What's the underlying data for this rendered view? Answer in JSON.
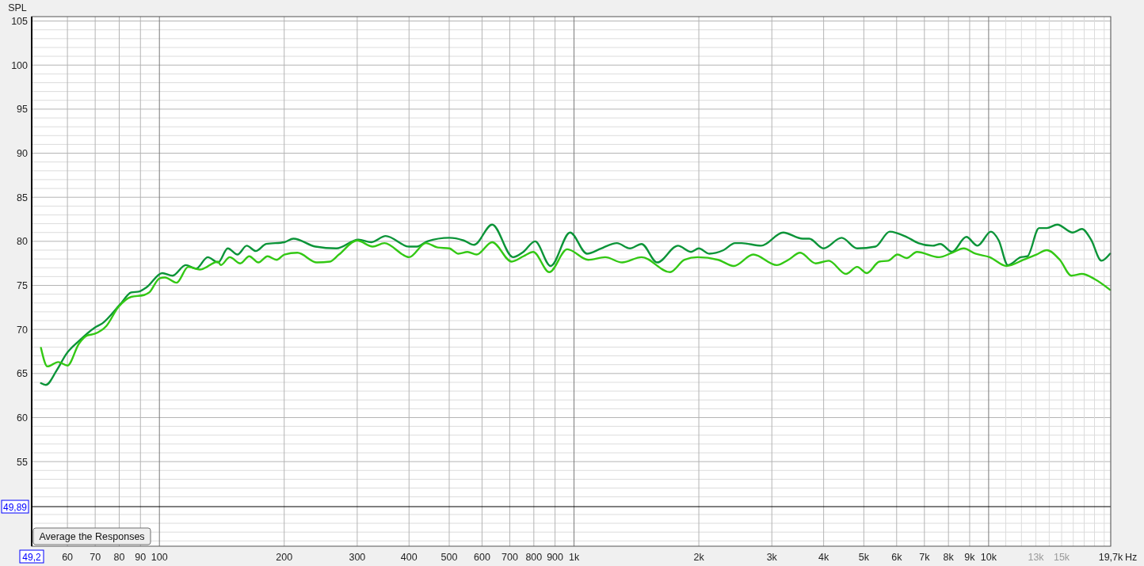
{
  "chart_data": {
    "type": "line",
    "ylabel": "SPL",
    "xlim": [
      49.2,
      19700
    ],
    "ylim": [
      45.4,
      105.5
    ],
    "log": "x",
    "grid": true,
    "line_style": "solid",
    "marker": "none",
    "xticks": [
      {
        "value": 49.2,
        "label": "49,2"
      },
      60,
      70,
      80,
      90,
      100,
      200,
      300,
      400,
      500,
      600,
      700,
      800,
      900,
      {
        "value": 1000,
        "label": "1k"
      },
      {
        "value": 2000,
        "label": "2k"
      },
      {
        "value": 3000,
        "label": "3k"
      },
      {
        "value": 4000,
        "label": "4k"
      },
      {
        "value": 5000,
        "label": "5k"
      },
      {
        "value": 6000,
        "label": "6k"
      },
      {
        "value": 7000,
        "label": "7k"
      },
      {
        "value": 8000,
        "label": "8k"
      },
      {
        "value": 9000,
        "label": "9k"
      },
      {
        "value": 10000,
        "label": "10k"
      },
      {
        "value": 11000,
        "label": null
      },
      {
        "value": 12000,
        "label": null
      },
      {
        "value": 13000,
        "label": "13k"
      },
      {
        "value": 14000,
        "label": null
      },
      {
        "value": 15000,
        "label": "15k"
      },
      {
        "value": 16000,
        "label": null
      },
      {
        "value": 17000,
        "label": null
      },
      {
        "value": 18000,
        "label": null
      },
      {
        "value": 19000,
        "label": null
      },
      {
        "value": 19700,
        "label": "19,7k"
      }
    ],
    "xlabel": "Hz",
    "yticks": [
      {
        "value": 46,
        "label": null
      },
      {
        "value": 47,
        "label": null
      },
      {
        "value": 48,
        "label": null
      },
      {
        "value": 49,
        "label": null
      },
      {
        "value": 51,
        "label": null
      },
      {
        "value": 52,
        "label": null
      },
      {
        "value": 53,
        "label": null
      },
      {
        "value": 54,
        "label": null
      },
      55,
      {
        "value": 56,
        "label": null
      },
      {
        "value": 57,
        "label": null
      },
      {
        "value": 58,
        "label": null
      },
      {
        "value": 59,
        "label": null
      },
      60,
      {
        "value": 61,
        "label": null
      },
      {
        "value": 62,
        "label": null
      },
      {
        "value": 63,
        "label": null
      },
      {
        "value": 64,
        "label": null
      },
      65,
      {
        "value": 66,
        "label": null
      },
      {
        "value": 67,
        "label": null
      },
      {
        "value": 68,
        "label": null
      },
      {
        "value": 69,
        "label": null
      },
      70,
      {
        "value": 71,
        "label": null
      },
      {
        "value": 72,
        "label": null
      },
      {
        "value": 73,
        "label": null
      },
      {
        "value": 74,
        "label": null
      },
      75,
      {
        "value": 76,
        "label": null
      },
      {
        "value": 77,
        "label": null
      },
      {
        "value": 78,
        "label": null
      },
      {
        "value": 79,
        "label": null
      },
      80,
      {
        "value": 81,
        "label": null
      },
      {
        "value": 82,
        "label": null
      },
      {
        "value": 83,
        "label": null
      },
      {
        "value": 84,
        "label": null
      },
      85,
      {
        "value": 86,
        "label": null
      },
      {
        "value": 87,
        "label": null
      },
      {
        "value": 88,
        "label": null
      },
      {
        "value": 89,
        "label": null
      },
      90,
      {
        "value": 91,
        "label": null
      },
      {
        "value": 92,
        "label": null
      },
      {
        "value": 93,
        "label": null
      },
      {
        "value": 94,
        "label": null
      },
      95,
      {
        "value": 96,
        "label": null
      },
      {
        "value": 97,
        "label": null
      },
      {
        "value": 98,
        "label": null
      },
      {
        "value": 99,
        "label": null
      },
      100,
      {
        "value": 101,
        "label": null
      },
      {
        "value": 102,
        "label": null
      },
      {
        "value": 103,
        "label": null
      },
      {
        "value": 104,
        "label": null
      },
      105
    ],
    "ref_lines": [
      {
        "axis": "y",
        "value": 49.89,
        "label": "49,89",
        "color": "#000000"
      }
    ],
    "annotations": [
      "Average the Responses"
    ],
    "series": [
      {
        "color": "#0b9438",
        "x": [
          51.8,
          53.2,
          56.6,
          59.6,
          64.0,
          69.8,
          72.9,
          80.6,
          85.5,
          89.2,
          93.2,
          101.6,
          107.6,
          115.7,
          122.6,
          130.8,
          138.5,
          146.2,
          154.3,
          162.4,
          170.8,
          180.9,
          200.1,
          210.5,
          237.9,
          267.1,
          301.9,
          324.6,
          351.3,
          400.0,
          417.8,
          442.6,
          500.3,
          541.6,
          573.9,
          634.7,
          712.6,
          754.8,
          805.4,
          878.1,
          978.6,
          1075,
          1163,
          1269,
          1364,
          1455,
          1587,
          1781,
          1914,
          2000,
          2118,
          2293,
          2446,
          2536,
          2827,
          3194,
          3560,
          3692,
          3996,
          4420,
          4818,
          5333,
          5772,
          6341,
          6766,
          7323,
          7647,
          8159,
          8834,
          9399,
          10130,
          10578,
          11128,
          11956,
          12400,
          13234,
          13818,
          14639,
          15960,
          16788,
          17655,
          18707,
          19624
        ],
        "values": [
          63.9,
          63.7,
          65.4,
          67.2,
          68.7,
          70.2,
          70.7,
          72.9,
          74.2,
          74.3,
          74.8,
          76.4,
          76.1,
          77.3,
          76.9,
          78.2,
          77.6,
          79.2,
          78.5,
          79.5,
          78.9,
          79.7,
          79.9,
          80.3,
          79.4,
          79.2,
          80.2,
          79.9,
          80.6,
          79.4,
          79.4,
          80.0,
          80.4,
          80.1,
          79.6,
          81.9,
          78.2,
          78.8,
          80.0,
          77.2,
          81.0,
          78.6,
          79.2,
          79.8,
          79.2,
          79.7,
          77.6,
          79.5,
          78.8,
          79.2,
          78.6,
          79.0,
          79.8,
          79.8,
          79.5,
          81.0,
          80.3,
          80.3,
          79.2,
          80.4,
          79.2,
          79.4,
          81.1,
          80.5,
          79.8,
          79.5,
          79.7,
          78.8,
          80.5,
          79.5,
          81.1,
          80.1,
          77.3,
          78.2,
          78.3,
          81.5,
          81.5,
          81.9,
          81.0,
          81.4,
          80.2,
          77.8,
          78.6
        ]
      },
      {
        "color": "#33c814",
        "x": [
          51.8,
          53.7,
          57.0,
          60.0,
          64.0,
          66.9,
          69.8,
          74.5,
          79.5,
          85.5,
          91.8,
          94.5,
          100.1,
          103.1,
          110.0,
          117.4,
          125.2,
          138.5,
          140.6,
          147.8,
          156.7,
          164.7,
          173.3,
          182.3,
          191.7,
          200.1,
          215.2,
          239.8,
          257.7,
          271.0,
          299.8,
          327.0,
          348.9,
          400.0,
          439.5,
          469.0,
          500.3,
          526.3,
          553.4,
          582.1,
          634.7,
          707.3,
          754.8,
          797.4,
          871.7,
          963.1,
          1082,
          1189,
          1306,
          1455,
          1705,
          1847,
          1985,
          2227,
          2428,
          2706,
          3082,
          3288,
          3509,
          3827,
          4114,
          4529,
          4818,
          5084,
          5449,
          5730,
          6027,
          6341,
          6716,
          7591,
          8159,
          8707,
          9290,
          10057,
          11046,
          12134,
          13040,
          13818,
          14850,
          15843,
          16788,
          18040,
          19624
        ],
        "values": [
          67.9,
          65.8,
          66.3,
          65.9,
          68.4,
          69.3,
          69.5,
          70.4,
          72.5,
          73.7,
          73.9,
          74.2,
          75.8,
          75.9,
          75.3,
          77.1,
          76.8,
          77.7,
          77.3,
          78.2,
          77.5,
          78.3,
          77.6,
          78.3,
          77.9,
          78.5,
          78.7,
          77.6,
          77.7,
          78.5,
          80.1,
          79.4,
          79.8,
          78.2,
          79.8,
          79.3,
          79.2,
          78.6,
          78.8,
          78.5,
          79.9,
          77.7,
          78.3,
          78.8,
          76.5,
          79.1,
          77.9,
          78.2,
          77.6,
          78.2,
          76.5,
          77.9,
          78.2,
          77.9,
          77.2,
          78.5,
          77.3,
          77.9,
          78.7,
          77.5,
          77.8,
          76.3,
          77.1,
          76.4,
          77.7,
          77.8,
          78.5,
          78.1,
          78.8,
          78.2,
          78.7,
          79.2,
          78.6,
          78.2,
          77.2,
          77.9,
          78.5,
          79.0,
          77.9,
          76.1,
          76.3,
          75.7,
          74.5
        ]
      }
    ]
  }
}
